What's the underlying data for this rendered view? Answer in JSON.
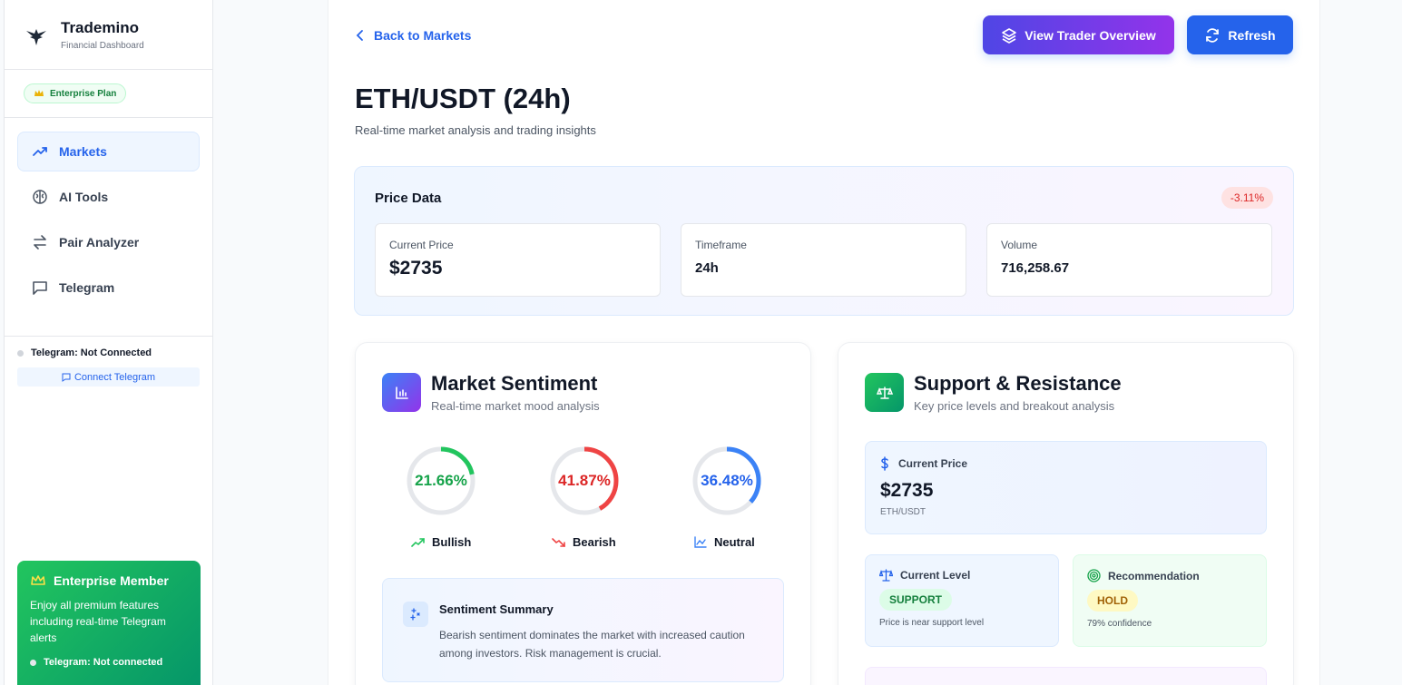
{
  "brand": {
    "name": "Trademino",
    "subtitle": "Financial Dashboard"
  },
  "plan": {
    "label": "Enterprise Plan"
  },
  "nav": [
    {
      "label": "Markets",
      "icon": "trending-up-icon",
      "active": true
    },
    {
      "label": "AI Tools",
      "icon": "brain-icon"
    },
    {
      "label": "Pair Analyzer",
      "icon": "arrows-swap-icon"
    },
    {
      "label": "Telegram",
      "icon": "message-square-icon"
    }
  ],
  "telegram": {
    "status": "Telegram: Not Connected",
    "connect_label": "Connect Telegram"
  },
  "member": {
    "title": "Enterprise Member",
    "text": "Enjoy all premium features including real-time Telegram alerts",
    "status": "Telegram: Not connected"
  },
  "header": {
    "back_label": "Back to Markets",
    "overview_label": "View Trader Overview",
    "refresh_label": "Refresh",
    "title": "ETH/USDT (24h)",
    "subtitle": "Real-time market analysis and trading insights"
  },
  "price_data": {
    "title": "Price Data",
    "change": "-3.11%",
    "current_price_label": "Current Price",
    "current_price": "$2735",
    "timeframe_label": "Timeframe",
    "timeframe": "24h",
    "volume_label": "Volume",
    "volume": "716,258.67"
  },
  "sentiment": {
    "title": "Market Sentiment",
    "subtitle": "Real-time market mood analysis",
    "gauges": [
      {
        "label": "Bullish",
        "value_text": "21.66%",
        "value": 21.66,
        "color": "#22c55e",
        "text_color": "#16a34a"
      },
      {
        "label": "Bearish",
        "value_text": "41.87%",
        "value": 41.87,
        "color": "#ef4444",
        "text_color": "#dc2626"
      },
      {
        "label": "Neutral",
        "value_text": "36.48%",
        "value": 36.48,
        "color": "#3b82f6",
        "text_color": "#2563eb"
      }
    ],
    "summary_title": "Sentiment Summary",
    "summary_text": "Bearish sentiment dominates the market with increased caution among investors. Risk management is crucial."
  },
  "support": {
    "title": "Support & Resistance",
    "subtitle": "Key price levels and breakout analysis",
    "current_price_label": "Current Price",
    "current_price": "$2735",
    "pair": "ETH/USDT",
    "level_label": "Current Level",
    "level_value": "SUPPORT",
    "level_note": "Price is near support level",
    "rec_label": "Recommendation",
    "rec_value": "HOLD",
    "rec_note": "79% confidence"
  }
}
